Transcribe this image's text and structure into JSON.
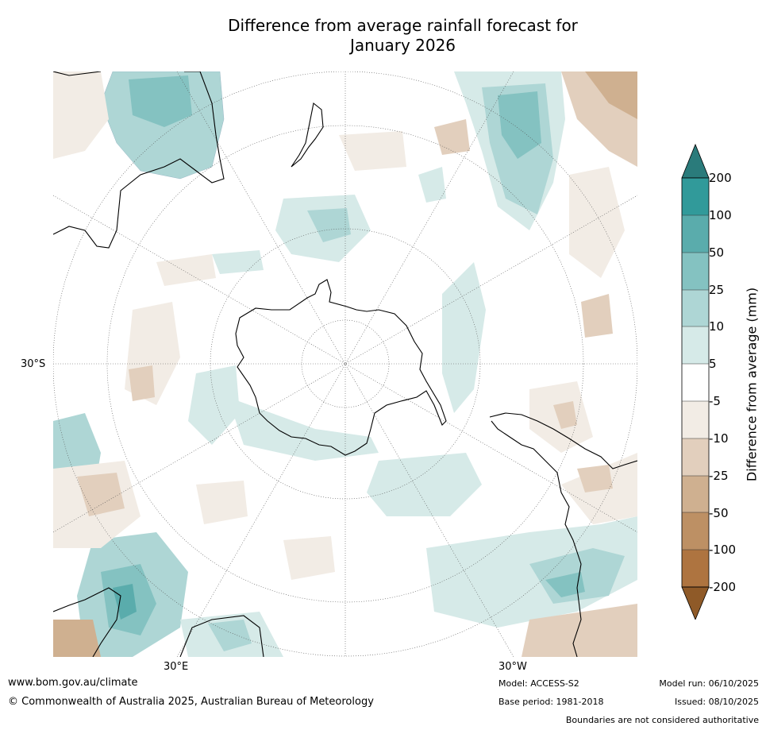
{
  "title": {
    "line1": "Difference from average rainfall forecast for",
    "line2": "January 2026"
  },
  "map": {
    "projection": "south-polar-stereographic",
    "latitude_label": "30°S",
    "longitude_labels": [
      "30°E",
      "30°W"
    ]
  },
  "colorbar": {
    "title": "Difference from average (mm)",
    "tick_labels": [
      "200",
      "100",
      "50",
      "25",
      "10",
      "5",
      "-5",
      "-10",
      "-25",
      "-50",
      "-100",
      "-200"
    ],
    "colors": [
      "#2a7b7b",
      "#319a9a",
      "#5aacac",
      "#84c2c1",
      "#aed6d5",
      "#d6eae8",
      "#ffffff",
      "#f2ece5",
      "#e2cfbd",
      "#cfb090",
      "#bd9064",
      "#ae7440",
      "#8f5a28"
    ]
  },
  "footer": {
    "url": "www.bom.gov.au/climate",
    "copyright": "© Commonwealth of Australia 2025, Australian Bureau of Meteorology",
    "model": "Model: ACCESS-S2",
    "base_period": "Base period: 1981-2018",
    "model_run": "Model run: 06/10/2025",
    "issued": "Issued: 08/10/2025",
    "disclaimer": "Boundaries are not considered authoritative"
  }
}
